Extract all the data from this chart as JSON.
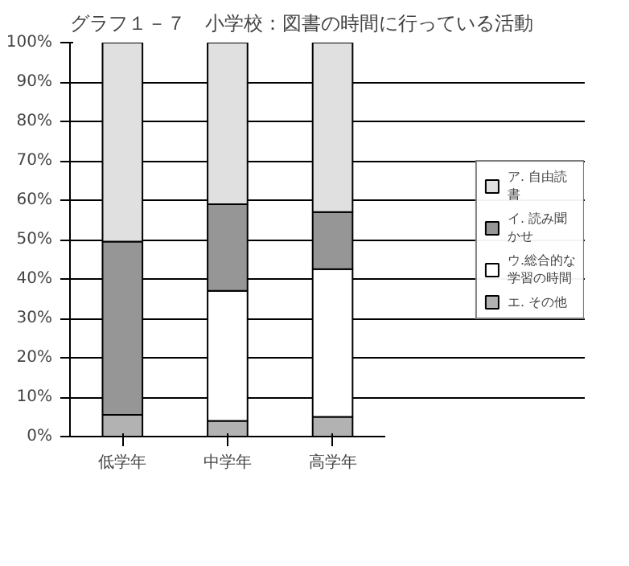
{
  "chart_data": {
    "type": "bar",
    "title": "グラフ１－７　小学校：図書の時間に行っている活動",
    "categories": [
      "低学年",
      "中学年",
      "高学年"
    ],
    "stacked": true,
    "series": [
      {
        "name": "エ. その他",
        "color": "#b2b2b2",
        "values": [
          5.5,
          4,
          5
        ]
      },
      {
        "name": "ウ.総合的な学習の時間",
        "color": "#ffffff",
        "values": [
          null,
          33,
          37.5
        ]
      },
      {
        "name": "イ. 読み聞かせ",
        "color": "#969696",
        "values": [
          44,
          22,
          14.5
        ]
      },
      {
        "name": "ア. 自由読書",
        "color": "#e0e0e0",
        "values": [
          50.5,
          41,
          43
        ]
      }
    ],
    "ylim": [
      0,
      100
    ],
    "yticks": [
      {
        "value": 0,
        "label": "0%"
      },
      {
        "value": 10,
        "label": "10%"
      },
      {
        "value": 20,
        "label": "20%"
      },
      {
        "value": 30,
        "label": "30%"
      },
      {
        "value": 40,
        "label": "40%"
      },
      {
        "value": 50,
        "label": "50%"
      },
      {
        "value": 60,
        "label": "60%"
      },
      {
        "value": 70,
        "label": "70%"
      },
      {
        "value": 80,
        "label": "80%"
      },
      {
        "value": 90,
        "label": "90%"
      },
      {
        "value": 100,
        "label": "100%"
      }
    ],
    "grid": "y",
    "legend": "right"
  }
}
